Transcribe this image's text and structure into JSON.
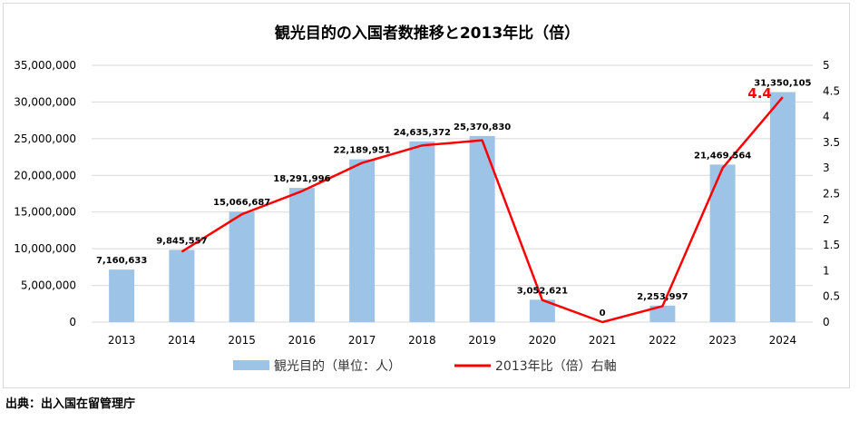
{
  "source_note": "出典：出入国在留管理庁",
  "colors": {
    "bar": "#9dc3e6",
    "line": "#ff0000",
    "grid": "#d9d9d9",
    "text": "#000000"
  },
  "chart_data": {
    "type": "bar+line",
    "title": "観光目的の入国者数推移と2013年比（倍）",
    "categories": [
      "2013",
      "2014",
      "2015",
      "2016",
      "2017",
      "2018",
      "2019",
      "2020",
      "2021",
      "2022",
      "2023",
      "2024"
    ],
    "series": [
      {
        "name": "観光目的（単位：人）",
        "type": "bar",
        "axis": "left",
        "values": [
          7160633,
          9845557,
          15066687,
          18291996,
          22189951,
          24635372,
          25370830,
          3052621,
          0,
          2253997,
          21469564,
          31350105
        ],
        "labels": [
          "7,160,633",
          "9,845,557",
          "15,066,687",
          "18,291,996",
          "22,189,951",
          "24,635,372",
          "25,370,830",
          "3,052,621",
          "0",
          "2,253,997",
          "21,469,564",
          "31,350,105"
        ]
      },
      {
        "name": "2013年比（倍）右軸",
        "type": "line",
        "axis": "right",
        "values": [
          null,
          1.37,
          2.1,
          2.55,
          3.1,
          3.44,
          3.54,
          0.43,
          0.0,
          0.31,
          3.0,
          4.38
        ],
        "highlight_label": "4.4"
      }
    ],
    "y_left": {
      "min": 0,
      "max": 35000000,
      "ticks": [
        0,
        5000000,
        10000000,
        15000000,
        20000000,
        25000000,
        30000000,
        35000000
      ],
      "tick_labels": [
        "0",
        "5,000,000",
        "10,000,000",
        "15,000,000",
        "20,000,000",
        "25,000,000",
        "30,000,000",
        "35,000,000"
      ]
    },
    "y_right": {
      "min": 0,
      "max": 5,
      "ticks": [
        0,
        0.5,
        1,
        1.5,
        2,
        2.5,
        3,
        3.5,
        4,
        4.5,
        5
      ],
      "tick_labels": [
        "0",
        "0.5",
        "1",
        "1.5",
        "2",
        "2.5",
        "3",
        "3.5",
        "4",
        "4.5",
        "5"
      ]
    },
    "grid": true,
    "legend_position": "bottom"
  }
}
